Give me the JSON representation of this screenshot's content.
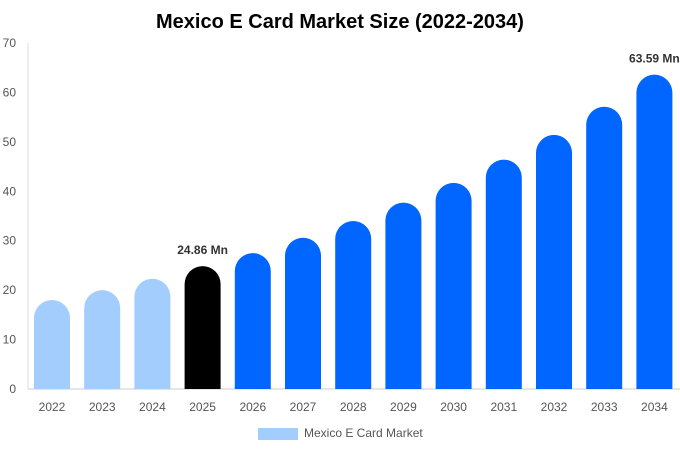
{
  "chart_data": {
    "type": "bar",
    "title": "Mexico E Card Market Size (2022-2034)",
    "categories": [
      "2022",
      "2023",
      "2024",
      "2025",
      "2026",
      "2027",
      "2028",
      "2029",
      "2030",
      "2031",
      "2032",
      "2033",
      "2034"
    ],
    "series": [
      {
        "name": "Mexico E Card Market",
        "values": [
          18.0,
          20.0,
          22.3,
          24.86,
          27.5,
          30.6,
          34.0,
          37.7,
          41.7,
          46.4,
          51.4,
          57.1,
          63.59
        ]
      }
    ],
    "bar_colors": [
      "#a3cdfc",
      "#a3cdfc",
      "#a3cdfc",
      "#000000",
      "#0066ff",
      "#0066ff",
      "#0066ff",
      "#0066ff",
      "#0066ff",
      "#0066ff",
      "#0066ff",
      "#0066ff",
      "#0066ff"
    ],
    "data_labels": {
      "3": "24.86 Mn",
      "12": "63.59 Mn"
    },
    "yticks": [
      0,
      10,
      20,
      30,
      40,
      50,
      60,
      70
    ],
    "ylim": [
      0,
      70
    ],
    "grid": false,
    "legend": {
      "position": "bottom",
      "label": "Mexico E Card Market",
      "color": "#a3cdfc"
    }
  }
}
